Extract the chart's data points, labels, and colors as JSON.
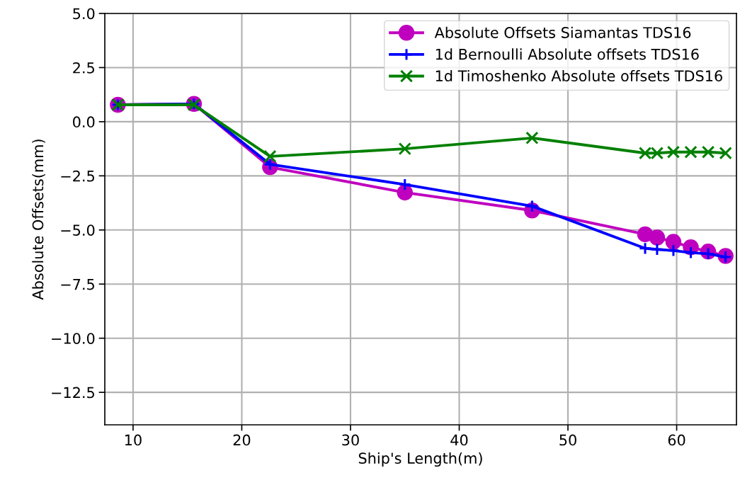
{
  "chart_data": {
    "type": "line",
    "xlabel": "Ship's Length(m)",
    "ylabel": "Absolute Offsets(mm)",
    "x": [
      8.6,
      15.6,
      22.6,
      35.0,
      46.7,
      57.1,
      58.2,
      59.7,
      61.3,
      62.9,
      64.5
    ],
    "xlim": [
      7.4,
      65.5
    ],
    "xticks": [
      10,
      20,
      30,
      40,
      50,
      60
    ],
    "ylim": [
      -14.0,
      5.0
    ],
    "yticks": [
      {
        "value": -12.5,
        "label": "−12.5"
      },
      {
        "value": -10.0,
        "label": "−10.0"
      },
      {
        "value": -7.5,
        "label": "−7.5"
      },
      {
        "value": -5.0,
        "label": "−5.0"
      },
      {
        "value": -2.5,
        "label": "−2.5"
      },
      {
        "value": 0.0,
        "label": "0.0"
      },
      {
        "value": 2.5,
        "label": "2.5"
      },
      {
        "value": 5.0,
        "label": "5.0"
      }
    ],
    "grid": true,
    "legend": "top right",
    "series": [
      {
        "name": "Absolute Offsets Siamantas TDS16",
        "color": "#bf00bf",
        "marker": "circle",
        "values": [
          0.78,
          0.82,
          -2.1,
          -3.27,
          -4.1,
          -5.2,
          -5.35,
          -5.55,
          -5.8,
          -6.0,
          -6.2
        ]
      },
      {
        "name": "1d Bernoulli Absolute offsets TDS16",
        "color": "#0000ff",
        "marker": "plus",
        "values": [
          0.78,
          0.82,
          -1.97,
          -2.9,
          -3.9,
          -5.85,
          -5.9,
          -5.95,
          -6.05,
          -6.1,
          -6.25
        ]
      },
      {
        "name": "1d Timoshenko Absolute offsets TDS16",
        "color": "#008000",
        "marker": "cross",
        "values": [
          0.78,
          0.78,
          -1.6,
          -1.25,
          -0.75,
          -1.45,
          -1.45,
          -1.4,
          -1.4,
          -1.4,
          -1.45
        ]
      }
    ]
  }
}
